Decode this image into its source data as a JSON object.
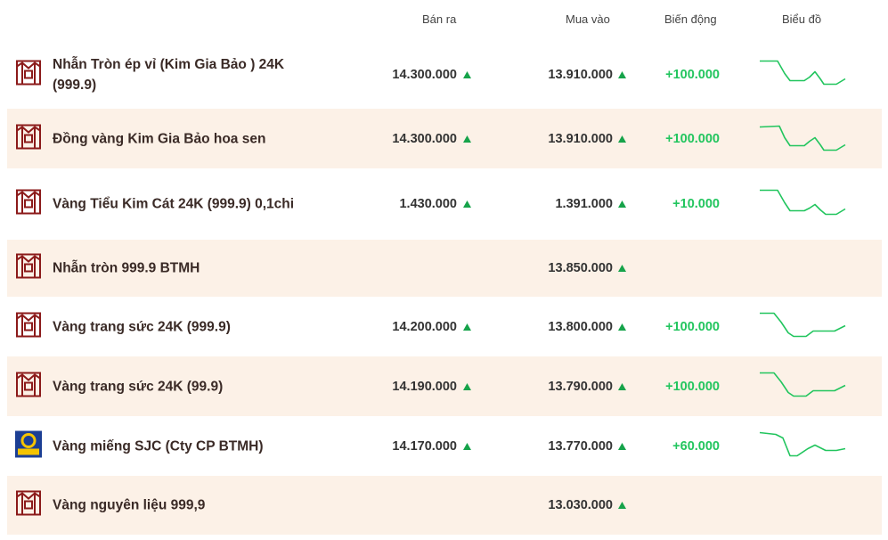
{
  "header": {
    "sell": "Bán ra",
    "buy": "Mua vào",
    "change": "Biến động",
    "chart": "Biểu đồ"
  },
  "table": {
    "rows": [
      {
        "name": "Nhẫn Tròn ép vỉ (Kim Gia Bảo ) 24K (999.9)",
        "sell": "14.300.000",
        "buy": "13.910.000",
        "change": "+100.000"
      },
      {
        "name": "Đồng vàng Kim Gia Bảo hoa sen",
        "sell": "14.300.000",
        "buy": "13.910.000",
        "change": "+100.000"
      },
      {
        "name": "Vàng Tiểu Kim Cát 24K (999.9) 0,1chi",
        "sell": "1.430.000",
        "buy": "1.391.000",
        "change": "+10.000"
      },
      {
        "name": "Nhẫn tròn 999.9 BTMH",
        "buy": "13.850.000"
      },
      {
        "name": "Vàng trang sức 24K (999.9)",
        "sell": "14.200.000",
        "buy": "13.800.000",
        "change": "+100.000"
      },
      {
        "name": "Vàng trang sức 24K (99.9)",
        "sell": "14.190.000",
        "buy": "13.790.000",
        "change": "+100.000"
      },
      {
        "name": "Vàng miếng SJC (Cty CP BTMH)",
        "sell": "14.170.000",
        "buy": "13.770.000",
        "change": "+60.000"
      },
      {
        "name": "Vàng nguyên liệu 999,9",
        "buy": "13.030.000"
      }
    ]
  }
}
